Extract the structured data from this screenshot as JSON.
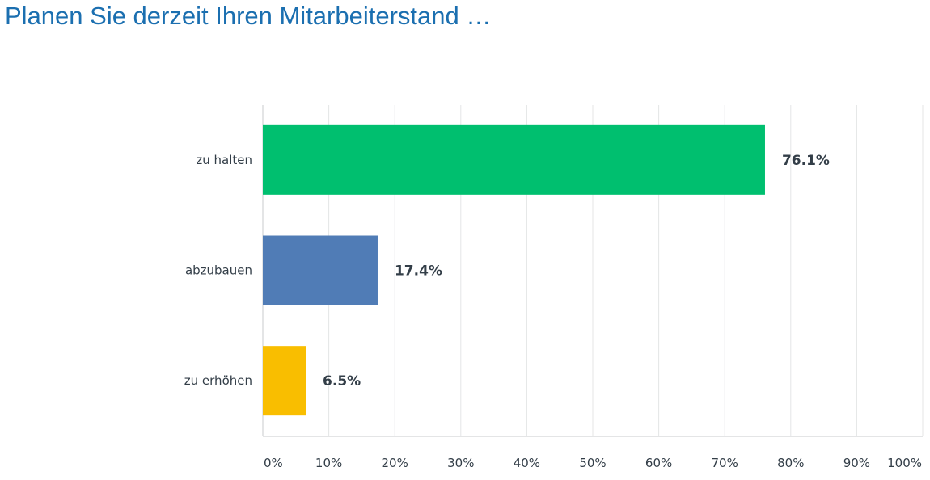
{
  "page": {
    "title": "Planen Sie derzeit Ihren Mitarbeiterstand …"
  },
  "chart_data": {
    "type": "bar",
    "orientation": "horizontal",
    "categories": [
      "zu halten",
      "abzubauen",
      "zu erhöhen"
    ],
    "values": [
      76.1,
      17.4,
      6.5
    ],
    "value_labels": [
      "76.1%",
      "17.4%",
      "6.5%"
    ],
    "colors": [
      "#00bf6f",
      "#507cb6",
      "#f9be00"
    ],
    "x_ticks": [
      "0%",
      "10%",
      "20%",
      "30%",
      "40%",
      "50%",
      "60%",
      "70%",
      "80%",
      "90%",
      "100%"
    ],
    "xlim": [
      0,
      100
    ],
    "grid": true,
    "legend": "none"
  }
}
